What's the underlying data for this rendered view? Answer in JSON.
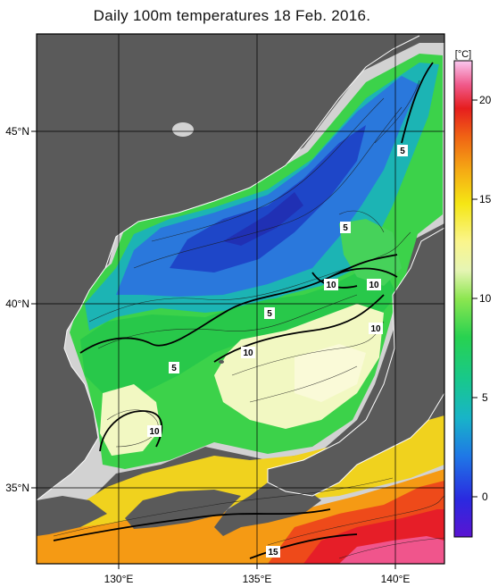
{
  "title": "Daily 100m temperatures 18 Feb. 2016.",
  "map": {
    "variable": "temperature at 100 m depth",
    "lat_labels": [
      "45°N",
      "40°N",
      "35°N"
    ],
    "lon_labels": [
      "130°E",
      "135°E",
      "140°E"
    ],
    "contour_labels": [
      "5",
      "5",
      "5",
      "5",
      "5",
      "10",
      "10",
      "10",
      "10",
      "10",
      "15"
    ],
    "colors": {
      "land": "#5a5a5a",
      "no_data": "#d2d2d2",
      "coast": "#ffffff"
    }
  },
  "colorbar": {
    "unit": "[°C]",
    "ticks": [
      "20",
      "15",
      "10",
      "5",
      "0"
    ],
    "min": -2,
    "max": 22
  }
}
